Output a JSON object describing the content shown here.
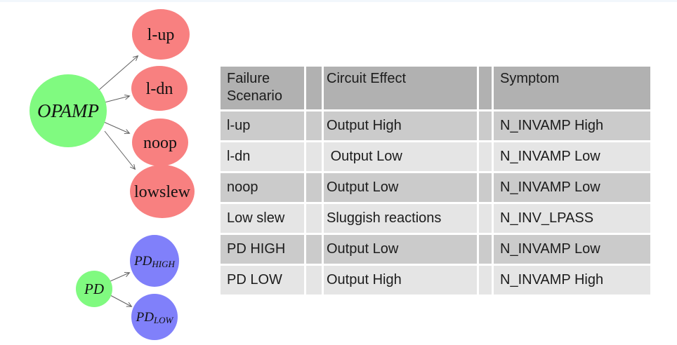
{
  "page": {
    "background": "#ffffff",
    "top_bar_color": "#f2f7fc"
  },
  "diagram": {
    "arrow_color": "#606060",
    "text_color": "#111111",
    "opamp_tree": {
      "root": {
        "label": "OPAMP",
        "color": "#80fa80"
      },
      "children": [
        {
          "label": "l-up",
          "color": "#f88080"
        },
        {
          "label": "l-dn",
          "color": "#f88080"
        },
        {
          "label": "noop",
          "color": "#f88080"
        },
        {
          "label": "lowslew",
          "color": "#f88080"
        }
      ]
    },
    "pd_tree": {
      "root": {
        "label": "PD",
        "color": "#80fa80"
      },
      "children": [
        {
          "label_main": "PD",
          "label_sub": "HIGH",
          "color": "#8080fa"
        },
        {
          "label_main": "PD",
          "label_sub": "LOW",
          "color": "#8080fa"
        }
      ]
    }
  },
  "table": {
    "columns": [
      "Failure Scenario",
      "Circuit Effect",
      "Symptom"
    ],
    "rows": [
      {
        "scenario": "l-up",
        "effect": "Output High",
        "symptom": "N_INVAMP High"
      },
      {
        "scenario": "l-dn",
        "effect": " Output Low",
        "symptom": "N_INVAMP Low"
      },
      {
        "scenario": "noop",
        "effect": "Output Low",
        "symptom": "N_INVAMP Low"
      },
      {
        "scenario": "Low slew",
        "effect": "Sluggish reactions",
        "symptom": "N_INV_LPASS"
      },
      {
        "scenario": "PD HIGH",
        "effect": "Output Low",
        "symptom": "N_INVAMP Low"
      },
      {
        "scenario": "PD LOW",
        "effect": "Output High",
        "symptom": "N_INVAMP High"
      }
    ],
    "colors": {
      "header_bg": "#b1b1b1",
      "row_odd_bg": "#cbcbcb",
      "row_even_bg": "#e5e5e5",
      "grid": "#ffffff",
      "text": "#1c1c1c"
    }
  }
}
